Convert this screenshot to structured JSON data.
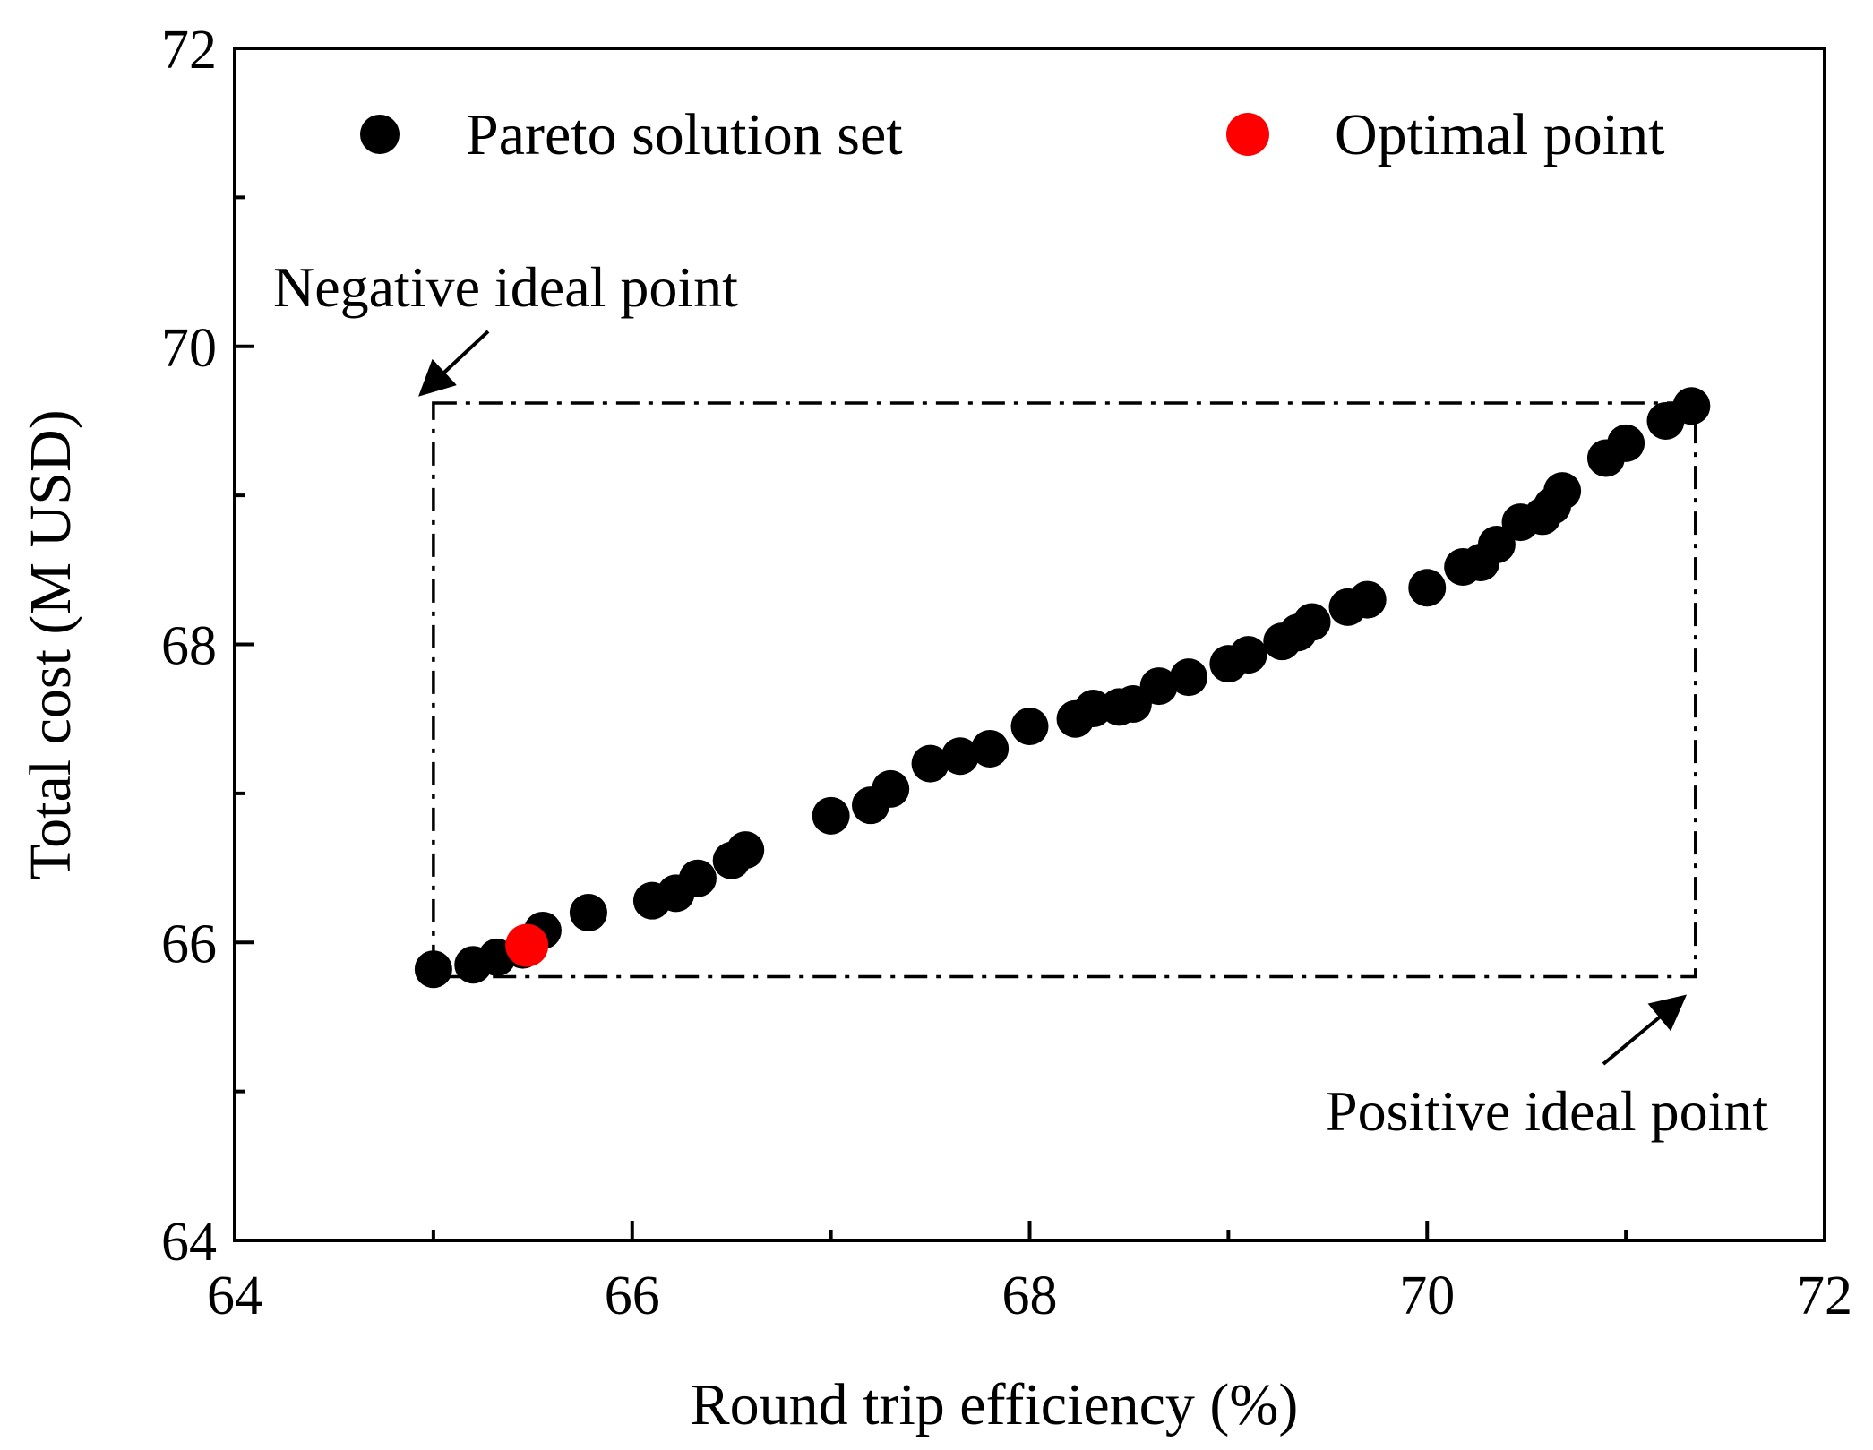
{
  "chart_data": {
    "type": "scatter",
    "title": "",
    "xlabel": "Round trip efficiency (%)",
    "ylabel": "Total cost (M USD)",
    "xlim": [
      64,
      72
    ],
    "ylim": [
      64,
      72
    ],
    "x_ticks": [
      64,
      66,
      68,
      70,
      72
    ],
    "y_ticks": [
      64,
      66,
      68,
      70,
      72
    ],
    "x_tick_labels": [
      "64",
      "66",
      "68",
      "70",
      "72"
    ],
    "y_tick_labels": [
      "64",
      "66",
      "68",
      "70",
      "72"
    ],
    "grid": false,
    "legend_position": "top",
    "series": [
      {
        "name": "Pareto solution set",
        "color": "#000000",
        "points": [
          [
            65.0,
            65.82
          ],
          [
            65.2,
            65.85
          ],
          [
            65.32,
            65.9
          ],
          [
            65.45,
            65.95
          ],
          [
            65.55,
            66.08
          ],
          [
            65.78,
            66.2
          ],
          [
            66.1,
            66.28
          ],
          [
            66.22,
            66.33
          ],
          [
            66.33,
            66.43
          ],
          [
            66.5,
            66.55
          ],
          [
            66.57,
            66.62
          ],
          [
            67.0,
            66.85
          ],
          [
            67.2,
            66.92
          ],
          [
            67.3,
            67.03
          ],
          [
            67.5,
            67.2
          ],
          [
            67.65,
            67.25
          ],
          [
            67.8,
            67.3
          ],
          [
            68.0,
            67.45
          ],
          [
            68.23,
            67.5
          ],
          [
            68.32,
            67.57
          ],
          [
            68.45,
            67.58
          ],
          [
            68.52,
            67.6
          ],
          [
            68.65,
            67.72
          ],
          [
            68.8,
            67.78
          ],
          [
            69.0,
            67.87
          ],
          [
            69.1,
            67.93
          ],
          [
            69.27,
            68.02
          ],
          [
            69.35,
            68.08
          ],
          [
            69.42,
            68.15
          ],
          [
            69.6,
            68.25
          ],
          [
            69.7,
            68.3
          ],
          [
            70.0,
            68.38
          ],
          [
            70.18,
            68.52
          ],
          [
            70.27,
            68.55
          ],
          [
            70.35,
            68.67
          ],
          [
            70.47,
            68.82
          ],
          [
            70.58,
            68.86
          ],
          [
            70.63,
            68.93
          ],
          [
            70.68,
            69.03
          ],
          [
            70.9,
            69.25
          ],
          [
            71.0,
            69.35
          ],
          [
            71.2,
            69.5
          ],
          [
            71.33,
            69.6
          ]
        ]
      },
      {
        "name": "Optimal point",
        "color": "#ff0000",
        "points": [
          [
            65.47,
            65.98
          ]
        ]
      }
    ],
    "annotations": [
      {
        "text": "Negative ideal point",
        "point": [
          65.0,
          69.62
        ]
      },
      {
        "text": "Positive ideal point",
        "point": [
          71.35,
          65.77
        ]
      }
    ],
    "ideal_box": {
      "x": [
        65.0,
        71.35
      ],
      "y": [
        65.77,
        69.62
      ]
    }
  }
}
